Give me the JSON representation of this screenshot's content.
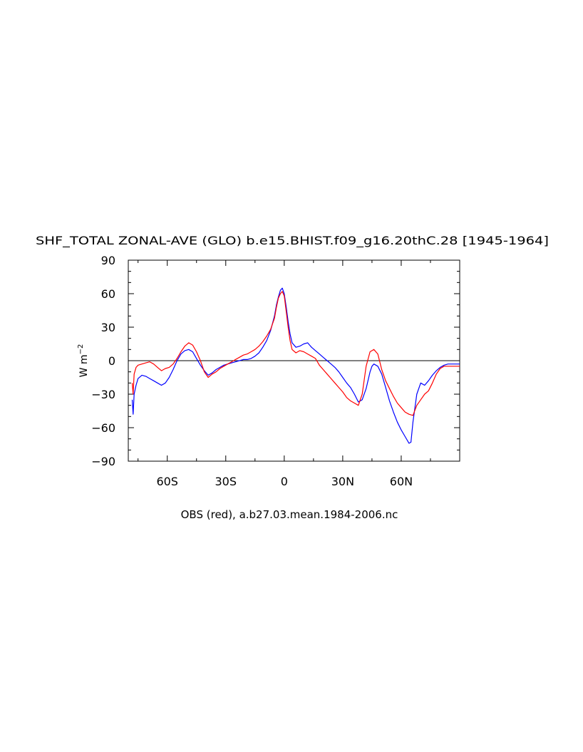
{
  "chart_data": {
    "type": "line",
    "title": "SHF_TOTAL ZONAL-AVE (GLO) b.e15.BHIST.f09_g16.20thC.28 [1945-1964]",
    "xlabel": "OBS (red), a.b27.03.mean.1984-2006.nc",
    "ylabel": "W m-2",
    "ylim": [
      -90,
      90
    ],
    "xlim": [
      -80,
      90
    ],
    "xticks": [
      {
        "value": -60,
        "label": "60S"
      },
      {
        "value": -30,
        "label": "30S"
      },
      {
        "value": 0,
        "label": "0"
      },
      {
        "value": 30,
        "label": "30N"
      },
      {
        "value": 60,
        "label": "60N"
      }
    ],
    "yticks": [
      {
        "value": 90,
        "label": "90"
      },
      {
        "value": 60,
        "label": "60"
      },
      {
        "value": 30,
        "label": "30"
      },
      {
        "value": 0,
        "label": "0"
      },
      {
        "value": -30,
        "label": "-30"
      },
      {
        "value": -60,
        "label": "-60"
      },
      {
        "value": -90,
        "label": "-90"
      }
    ],
    "zero_line": true,
    "grid": false,
    "series": [
      {
        "color": "#0000ff",
        "x": [
          -78,
          -77.5,
          -77,
          -76,
          -75,
          -73,
          -71,
          -69,
          -67,
          -65,
          -63,
          -61,
          -59,
          -57,
          -55,
          -53,
          -51,
          -49,
          -47,
          -45,
          -43,
          -41,
          -39,
          -37,
          -35,
          -33,
          -31,
          -29,
          -27,
          -25,
          -23,
          -21,
          -19,
          -17,
          -15,
          -13,
          -11,
          -9,
          -7,
          -5,
          -4,
          -3,
          -2,
          -1,
          0,
          1,
          2,
          3,
          4,
          6,
          8,
          10,
          12,
          13,
          14,
          16,
          18,
          20,
          22,
          24,
          26,
          28,
          30,
          32,
          34,
          36,
          38,
          40,
          42,
          44,
          45,
          46,
          48,
          50,
          52,
          54,
          56,
          58,
          60,
          62,
          64,
          65,
          66,
          68,
          70,
          72,
          74,
          76,
          78,
          80,
          82,
          84,
          86,
          88,
          90
        ],
        "y": [
          -35,
          -48,
          -30,
          -22,
          -16,
          -13,
          -14,
          -16,
          -18,
          -20,
          -22,
          -20,
          -15,
          -8,
          0,
          6,
          9,
          10,
          8,
          2,
          -4,
          -9,
          -13,
          -11,
          -8,
          -6,
          -4,
          -3,
          -2,
          -1,
          0,
          1,
          1,
          2,
          4,
          7,
          12,
          18,
          27,
          40,
          50,
          57,
          63,
          65,
          60,
          48,
          35,
          24,
          16,
          12,
          13,
          15,
          16,
          14,
          12,
          9,
          6,
          3,
          0,
          -3,
          -6,
          -10,
          -15,
          -20,
          -24,
          -30,
          -37,
          -35,
          -25,
          -10,
          -5,
          -3,
          -5,
          -12,
          -24,
          -36,
          -46,
          -55,
          -62,
          -68,
          -74,
          -73,
          -55,
          -30,
          -20,
          -22,
          -18,
          -13,
          -9,
          -6,
          -4,
          -3,
          -3,
          -3,
          -3
        ]
      },
      {
        "color": "#ff0000",
        "x": [
          -78,
          -77.5,
          -77,
          -76,
          -75,
          -73,
          -71,
          -69,
          -67,
          -65,
          -63,
          -61,
          -59,
          -57,
          -55,
          -53,
          -51,
          -49,
          -47,
          -45,
          -43,
          -41,
          -39,
          -37,
          -35,
          -33,
          -31,
          -29,
          -27,
          -25,
          -23,
          -21,
          -19,
          -17,
          -15,
          -13,
          -11,
          -9,
          -7,
          -5,
          -4,
          -3,
          -2,
          -1,
          0,
          1,
          2,
          3,
          4,
          6,
          8,
          10,
          12,
          14,
          16,
          18,
          20,
          22,
          24,
          26,
          28,
          30,
          32,
          34,
          36,
          38,
          40,
          42,
          44,
          46,
          48,
          50,
          52,
          54,
          56,
          58,
          60,
          62,
          64,
          66,
          68,
          70,
          72,
          74,
          76,
          78,
          80,
          82,
          84,
          86,
          88,
          90
        ],
        "y": [
          -20,
          -30,
          -12,
          -6,
          -4,
          -3,
          -2,
          -1,
          -3,
          -6,
          -9,
          -7,
          -6,
          -3,
          2,
          8,
          13,
          16,
          14,
          8,
          0,
          -10,
          -15,
          -12,
          -10,
          -7,
          -5,
          -3,
          -1,
          1,
          3,
          5,
          6,
          8,
          10,
          13,
          17,
          22,
          28,
          38,
          48,
          56,
          60,
          62,
          58,
          44,
          30,
          18,
          10,
          7,
          9,
          8,
          6,
          4,
          2,
          -4,
          -8,
          -12,
          -16,
          -20,
          -24,
          -28,
          -33,
          -36,
          -38,
          -40,
          -30,
          -5,
          8,
          10,
          6,
          -8,
          -18,
          -25,
          -32,
          -38,
          -42,
          -46,
          -48,
          -49,
          -40,
          -35,
          -30,
          -27,
          -20,
          -12,
          -7,
          -5,
          -5,
          -5,
          -5,
          -5
        ]
      }
    ]
  }
}
